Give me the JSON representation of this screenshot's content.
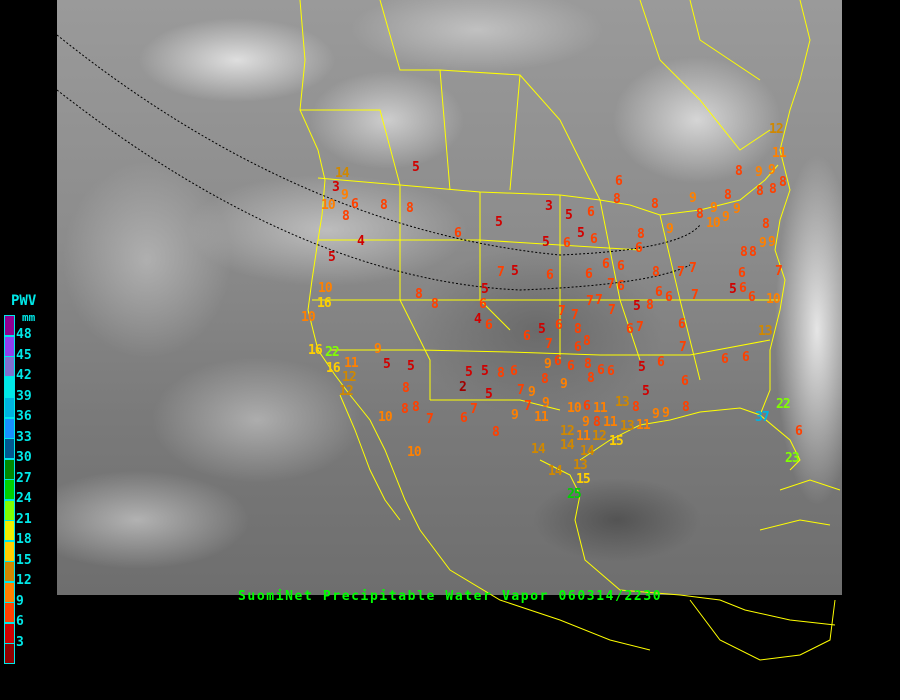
{
  "caption": "SuomiNet Precipitable Water Vapor 060314/2230",
  "legend": {
    "title": "PWV",
    "unit": "mm",
    "labels": [
      "48",
      "45",
      "42",
      "39",
      "36",
      "33",
      "30",
      "27",
      "24",
      "21",
      "18",
      "15",
      "12",
      "9",
      "6",
      "3"
    ],
    "colors": [
      "#900090",
      "#9040f0",
      "#8070d0",
      "#00e8e8",
      "#00b4e0",
      "#1890ff",
      "#005890",
      "#008800",
      "#00d000",
      "#80ff00",
      "#f0f000",
      "#ffd000",
      "#d08800",
      "#ff8000",
      "#ff4000",
      "#d00000",
      "#900000"
    ]
  },
  "map": {
    "boundary_color": "#ffff00",
    "background": "infrared satellite imagery"
  },
  "stations": [
    5,
    14,
    3,
    9,
    10,
    6,
    8,
    8,
    8,
    4,
    5,
    6,
    5,
    3,
    5,
    6,
    5,
    6,
    5,
    6,
    7,
    5,
    6,
    6,
    6,
    7,
    7,
    5,
    6,
    8,
    8,
    4,
    6,
    6,
    5,
    6,
    7,
    7,
    8,
    6,
    7,
    7,
    5,
    7,
    8,
    6,
    7,
    7,
    8,
    6,
    6,
    8,
    6,
    8,
    8,
    9,
    9,
    8,
    9,
    9,
    8,
    9,
    9,
    8,
    12,
    11,
    8,
    8,
    8,
    9,
    10,
    8,
    9,
    9,
    8,
    8,
    6,
    5,
    6,
    6,
    10,
    7,
    7,
    6,
    6,
    6,
    7,
    5,
    6,
    6,
    6,
    13,
    6,
    5,
    6,
    6,
    8,
    6,
    6,
    9,
    7,
    6,
    8,
    8,
    9,
    8,
    9,
    7,
    6,
    8,
    5,
    5,
    2,
    5,
    9,
    7,
    9,
    7,
    6,
    8,
    7,
    8,
    8,
    10,
    10,
    11,
    10,
    11,
    6,
    8,
    9,
    12,
    11,
    12,
    11,
    15,
    13,
    11,
    13,
    8,
    9,
    9,
    8,
    14,
    14,
    14,
    14,
    13,
    15,
    25,
    9,
    5,
    5,
    8,
    11,
    16,
    12,
    12,
    16,
    22,
    10,
    10,
    16,
    22,
    37,
    23,
    6
  ]
}
